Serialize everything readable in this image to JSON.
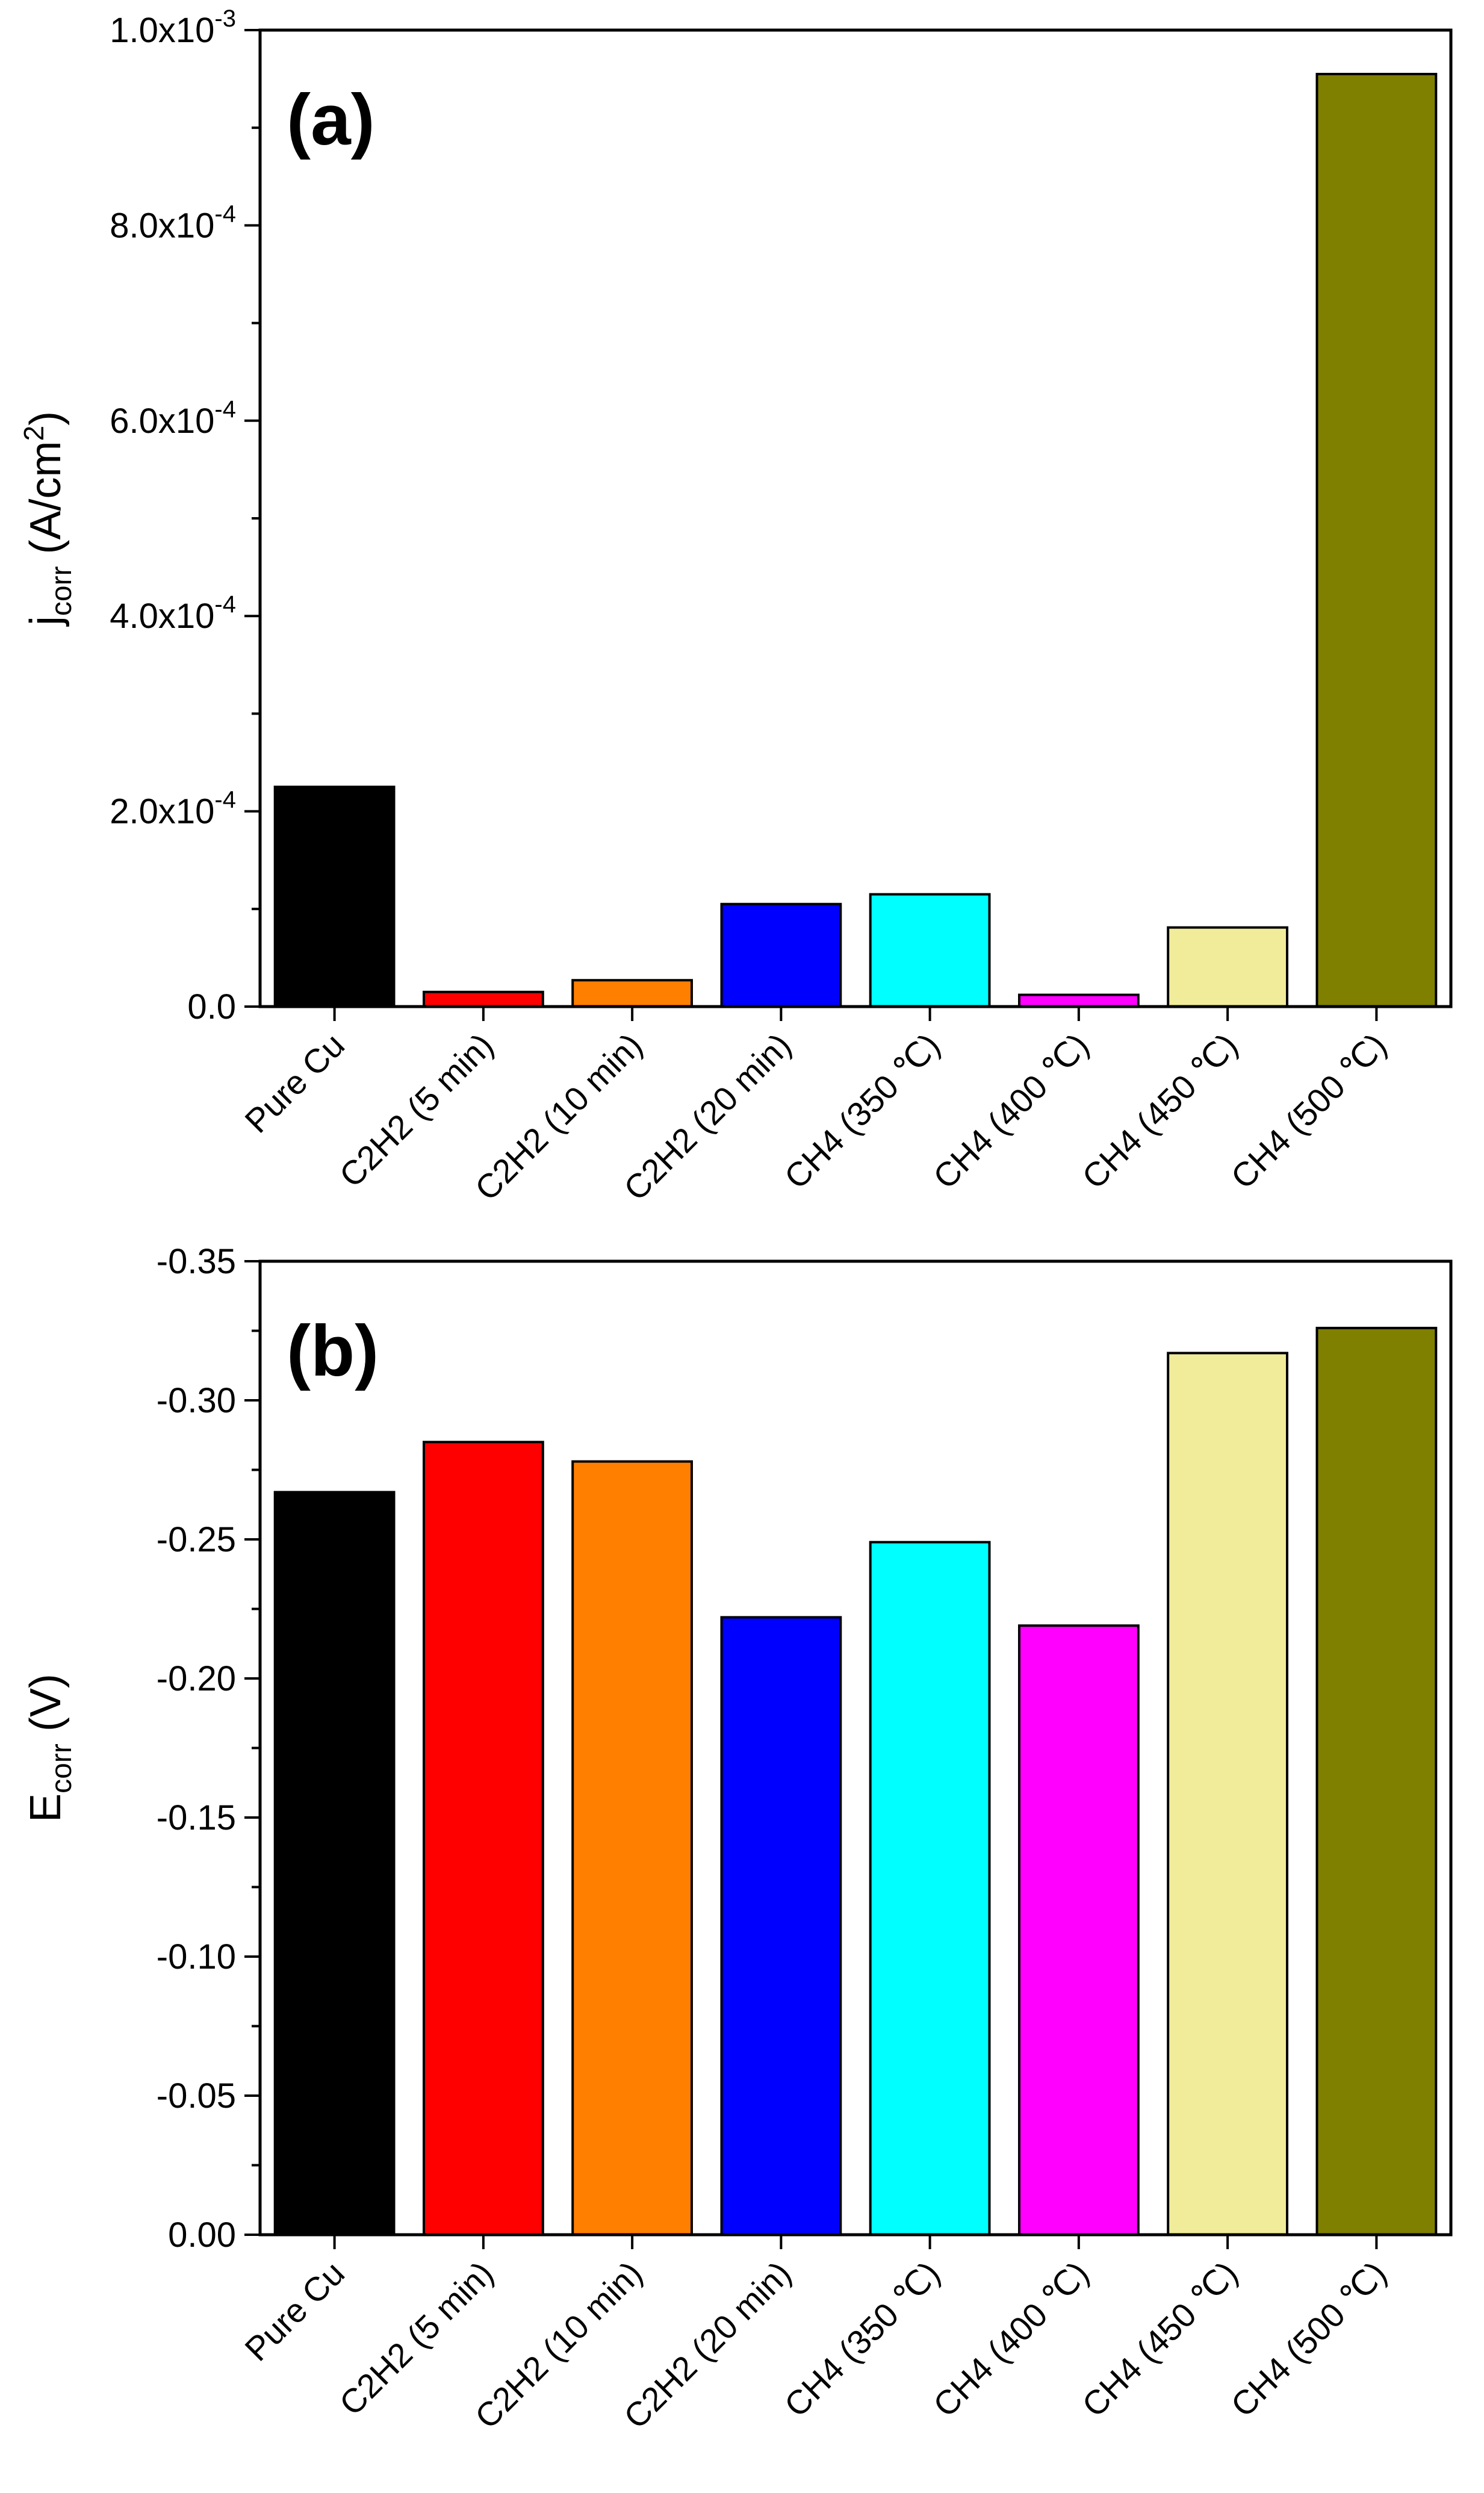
{
  "chart_data": [
    {
      "type": "bar",
      "panel_label": "(a)",
      "categories": [
        "Pure Cu",
        "C2H2 (5 min)",
        "C2H2 (10 min)",
        "C2H2 (20 min)",
        "CH4 (350 ℃)",
        "CH4 (400 ℃)",
        "CH4 (450 ℃)",
        "CH4 (500 ℃)"
      ],
      "values": [
        0.000225,
        1.5e-05,
        2.7e-05,
        0.000105,
        0.000115,
        1.2e-05,
        8.1e-05,
        0.000955
      ],
      "colors": [
        "#000000",
        "#ff0000",
        "#ff7f00",
        "#0000ff",
        "#00ffff",
        "#ff00ff",
        "#f0ec9a",
        "#7f7f00"
      ],
      "ylabel": {
        "main": "j",
        "sub": "corr",
        "rest": " (A/cm",
        "sup": "2",
        "close": ")"
      },
      "ylim": [
        0,
        0.001
      ],
      "yticks": [
        {
          "value": 0,
          "label": "0.0",
          "exp": ""
        },
        {
          "value": 0.0002,
          "label": "2.0x10",
          "exp": "-4"
        },
        {
          "value": 0.0004,
          "label": "4.0x10",
          "exp": "-4"
        },
        {
          "value": 0.0006,
          "label": "6.0x10",
          "exp": "-4"
        },
        {
          "value": 0.0008,
          "label": "8.0x10",
          "exp": "-4"
        },
        {
          "value": 0.001,
          "label": "1.0x10",
          "exp": "-3"
        }
      ],
      "minor_step": 0.0001
    },
    {
      "type": "bar",
      "panel_label": "(b)",
      "categories": [
        "Pure Cu",
        "C2H2 (5 min)",
        "C2H2 (10 min)",
        "C2H2 (20 min)",
        "CH4 (350 ℃)",
        "CH4 (400 ℃)",
        "CH4 (450 ℃)",
        "CH4 (500 ℃)"
      ],
      "values": [
        -0.267,
        -0.285,
        -0.278,
        -0.222,
        -0.249,
        -0.219,
        -0.317,
        -0.326
      ],
      "colors": [
        "#000000",
        "#ff0000",
        "#ff7f00",
        "#0000ff",
        "#00ffff",
        "#ff00ff",
        "#f0ec9a",
        "#7f7f00"
      ],
      "ylabel": {
        "main": "E",
        "sub": "corr",
        "rest": " (V)",
        "sup": "",
        "close": ""
      },
      "ylim": [
        0,
        -0.35
      ],
      "yticks": [
        {
          "value": 0,
          "label": "0.00",
          "exp": ""
        },
        {
          "value": -0.05,
          "label": "-0.05",
          "exp": ""
        },
        {
          "value": -0.1,
          "label": "-0.10",
          "exp": ""
        },
        {
          "value": -0.15,
          "label": "-0.15",
          "exp": ""
        },
        {
          "value": -0.2,
          "label": "-0.20",
          "exp": ""
        },
        {
          "value": -0.25,
          "label": "-0.25",
          "exp": ""
        },
        {
          "value": -0.3,
          "label": "-0.30",
          "exp": ""
        },
        {
          "value": -0.35,
          "label": "-0.35",
          "exp": ""
        }
      ],
      "minor_step": -0.025
    }
  ]
}
